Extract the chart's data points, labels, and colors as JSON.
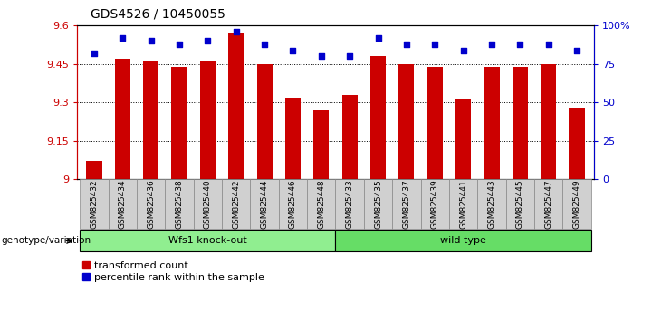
{
  "title": "GDS4526 / 10450055",
  "samples": [
    "GSM825432",
    "GSM825434",
    "GSM825436",
    "GSM825438",
    "GSM825440",
    "GSM825442",
    "GSM825444",
    "GSM825446",
    "GSM825448",
    "GSM825433",
    "GSM825435",
    "GSM825437",
    "GSM825439",
    "GSM825441",
    "GSM825443",
    "GSM825445",
    "GSM825447",
    "GSM825449"
  ],
  "bar_values": [
    9.07,
    9.47,
    9.46,
    9.44,
    9.46,
    9.57,
    9.45,
    9.32,
    9.27,
    9.33,
    9.48,
    9.45,
    9.44,
    9.31,
    9.44,
    9.44,
    9.45,
    9.28
  ],
  "dot_values_pct": [
    82,
    92,
    90,
    88,
    90,
    96,
    88,
    84,
    80,
    80,
    92,
    88,
    88,
    84,
    88,
    88,
    88,
    84
  ],
  "bar_color": "#cc0000",
  "dot_color": "#0000cc",
  "ymin": 9.0,
  "ymax": 9.6,
  "yticks": [
    9.0,
    9.15,
    9.3,
    9.45,
    9.6
  ],
  "ytick_labels": [
    "9",
    "9.15",
    "9.3",
    "9.45",
    "9.6"
  ],
  "right_yticks": [
    0,
    25,
    50,
    75,
    100
  ],
  "right_ytick_labels": [
    "0",
    "25",
    "50",
    "75",
    "100%"
  ],
  "groups": [
    {
      "label": "Wfs1 knock-out",
      "start": 0,
      "end": 9,
      "color": "#90ee90"
    },
    {
      "label": "wild type",
      "start": 9,
      "end": 18,
      "color": "#66dd66"
    }
  ],
  "genotype_label": "genotype/variation",
  "legend_red": "transformed count",
  "legend_blue": "percentile rank within the sample",
  "bar_width": 0.55,
  "plot_bg_color": "#ffffff",
  "tick_bg_color": "#d0d0d0",
  "tick_border_color": "#888888"
}
